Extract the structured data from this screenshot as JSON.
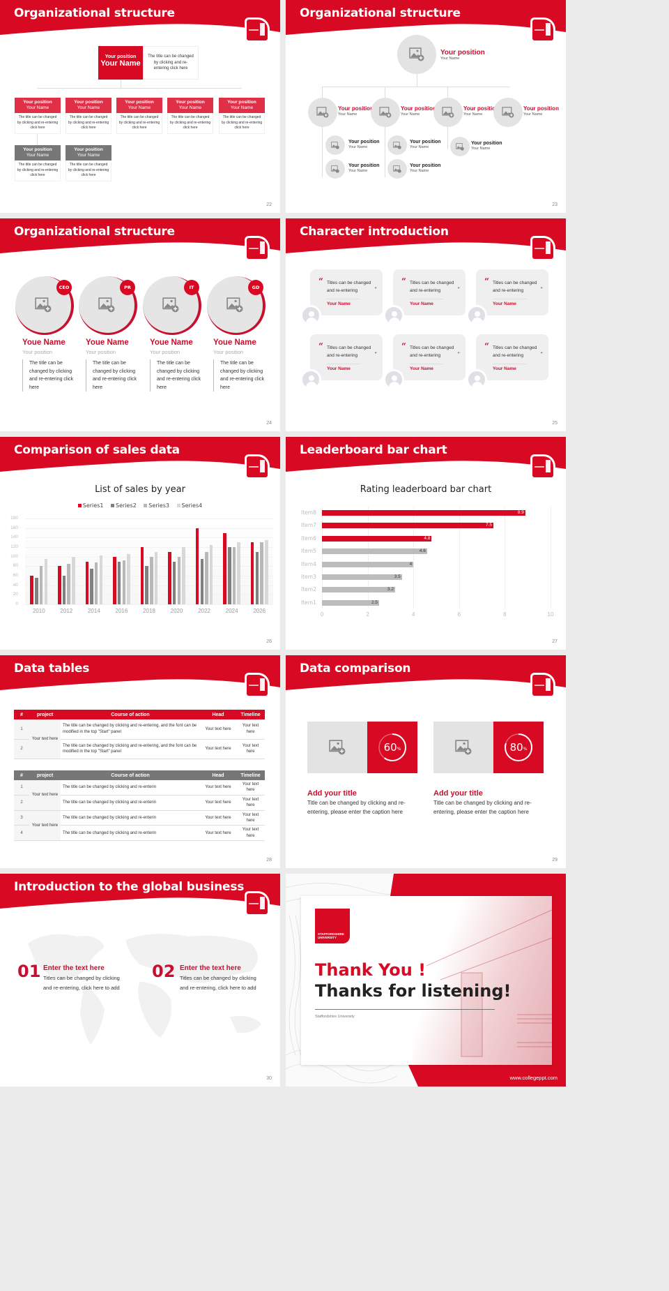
{
  "brand": {
    "red": "#d80a23",
    "gray": "#777777",
    "light_gray": "#e3e3e3"
  },
  "slides": {
    "s22": {
      "title": "Organizational structure",
      "page": "22",
      "top": {
        "position": "Your position",
        "name": "Your Name",
        "desc": "The title can be changed by clicking and re-entering click here"
      },
      "cards": [
        {
          "position": "Your position",
          "name": "Your Name",
          "desc": "The title can be changed by clicking and re-entering click here"
        },
        {
          "position": "Your position",
          "name": "Your Name",
          "desc": "The title can be changed by clicking and re-entering click here"
        },
        {
          "position": "Your position",
          "name": "Your Name",
          "desc": "The title can be changed by clicking and re-entering click here"
        },
        {
          "position": "Your position",
          "name": "Your Name",
          "desc": "The title can be changed by clicking and re-entering click here"
        },
        {
          "position": "Your position",
          "name": "Your Name",
          "desc": "The title can be changed by clicking and re-entering click here"
        },
        {
          "position": "Your position",
          "name": "Your Name",
          "desc": "The title can be changed by clicking and re-entering click here"
        },
        {
          "position": "Your position",
          "name": "Your Name",
          "desc": "The title can be changed by clicking and re-entering click here"
        }
      ]
    },
    "s23": {
      "title": "Organizational structure",
      "page": "23",
      "top": {
        "position": "Your position",
        "name": "Your Name"
      },
      "level2": [
        {
          "position": "Your position",
          "name": "Your Name"
        },
        {
          "position": "Your position",
          "name": "Your Name"
        },
        {
          "position": "Your position",
          "name": "Your Name"
        },
        {
          "position": "Your position",
          "name": "Your Name"
        }
      ],
      "level3": [
        {
          "position": "Your position",
          "name": "Your Name"
        },
        {
          "position": "Your position",
          "name": "Your Name"
        },
        {
          "position": "Your position",
          "name": "Your Name"
        },
        {
          "position": "Your position",
          "name": "Your Name"
        },
        {
          "position": "Your position",
          "name": "Your Name"
        }
      ]
    },
    "s24": {
      "title": "Organizational structure",
      "page": "24",
      "people": [
        {
          "badge": "CEO",
          "name": "Youe Name",
          "position": "Your position",
          "desc": "The title can be changed by clicking and re-entering click here"
        },
        {
          "badge": "PR",
          "name": "Youe Name",
          "position": "Your position",
          "desc": "The title can be changed by clicking and re-entering click here"
        },
        {
          "badge": "IT",
          "name": "Youe Name",
          "position": "Your position",
          "desc": "The title can be changed by clicking and re-entering click here"
        },
        {
          "badge": "GD",
          "name": "Youe Name",
          "position": "Your position",
          "desc": "The title can be changed by clicking and re-entering click here"
        }
      ]
    },
    "s25": {
      "title": "Character introduction",
      "page": "25",
      "quote_open": "“",
      "quote_close": "”",
      "cards": [
        {
          "text": "Titles can be changed and re-entering",
          "name": "Your Name"
        },
        {
          "text": "Titles can be changed and re-entering",
          "name": "Your Name"
        },
        {
          "text": "Titles can be changed and re-entering",
          "name": "Your Name"
        },
        {
          "text": "Titles can be changed and re-entering",
          "name": "Your Name"
        },
        {
          "text": "Titles can be changed and re-entering",
          "name": "Your Name"
        },
        {
          "text": "Titles can be changed and re-entering",
          "name": "Your Name"
        }
      ]
    },
    "s26": {
      "title": "Comparison of sales data",
      "page": "26"
    },
    "s27": {
      "title": "Leaderboard bar chart",
      "page": "27"
    },
    "s28": {
      "title": "Data tables",
      "page": "28",
      "headers": [
        "#",
        "project",
        "Course of action",
        "Head",
        "Timeline"
      ],
      "table1": {
        "project": "Your text here",
        "rows": [
          {
            "num": "1",
            "desc": "The title can be changed by clicking and re-entering, and the font can be modified in the top \"Start\" panel",
            "head": "Your text here",
            "timeline": "Your text here"
          },
          {
            "num": "2",
            "desc": "The title can be changed by clicking and re-entering, and the font can be modified in the top \"Start\" panel",
            "head": "Your text here",
            "timeline": "Your text here"
          }
        ]
      },
      "table2": {
        "projects": [
          "Your text here",
          "Your text here"
        ],
        "rows": [
          {
            "num": "1",
            "desc": "The title can be changed by clicking and re-enterin",
            "head": "Your text here",
            "timeline": "Your text here"
          },
          {
            "num": "2",
            "desc": "The title can be changed by clicking and re-enterin",
            "head": "Your text here",
            "timeline": "Your text here"
          },
          {
            "num": "3",
            "desc": "The title can be changed by clicking and re-enterin",
            "head": "Your text here",
            "timeline": "Your text here"
          },
          {
            "num": "4",
            "desc": "The title can be changed by clicking and re-enterin",
            "head": "Your text here",
            "timeline": "Your text here"
          }
        ]
      }
    },
    "s29": {
      "title": "Data comparison",
      "page": "29",
      "items": [
        {
          "percent": "60",
          "unit": "%",
          "title": "Add your title",
          "desc": "Title can be changed by clicking and re-entering, please enter the caption here"
        },
        {
          "percent": "80",
          "unit": "%",
          "title": "Add your title",
          "desc": "Title can be changed by clicking and re-entering, please enter the caption here"
        }
      ]
    },
    "s30": {
      "title": "Introduction to the global business",
      "page": "30",
      "items": [
        {
          "num": "01",
          "title": "Enter the text here",
          "desc1": "Titles can be changed by clicking",
          "desc2": "and re-entering, click here to add"
        },
        {
          "num": "02",
          "title": "Enter the text here",
          "desc1": "Titles can be changed by clicking",
          "desc2": "and re-entering, click here to add"
        }
      ]
    },
    "s31": {
      "logo_text": "STAFFORDSHIRE UNIVERSITY",
      "line1": "Thank You !",
      "line2": "Thanks for listening!",
      "sub": "Staffordshire University",
      "url": "www.collegeppt.com"
    }
  },
  "chart_data": [
    {
      "type": "bar",
      "title": "List of sales by year",
      "categories": [
        "2010",
        "2012",
        "2014",
        "2016",
        "2018",
        "2020",
        "2022",
        "2024",
        "2026"
      ],
      "series": [
        {
          "name": "Series1",
          "color": "#d80a23",
          "values": [
            60,
            80,
            90,
            100,
            120,
            110,
            160,
            150,
            130
          ]
        },
        {
          "name": "Series2",
          "color": "#808080",
          "values": [
            55,
            60,
            75,
            90,
            80,
            90,
            95,
            120,
            110
          ]
        },
        {
          "name": "Series3",
          "color": "#b8b8b8",
          "values": [
            80,
            85,
            88,
            92,
            100,
            100,
            110,
            120,
            130
          ]
        },
        {
          "name": "Series4",
          "color": "#d8d8d8",
          "values": [
            95,
            100,
            102,
            105,
            110,
            120,
            125,
            130,
            135
          ]
        }
      ],
      "xlabel": "",
      "ylabel": "",
      "ylim": [
        0,
        180
      ],
      "yticks": [
        0,
        20,
        40,
        60,
        80,
        100,
        120,
        140,
        160,
        180
      ],
      "grid": true,
      "legend_position": "top"
    },
    {
      "type": "bar",
      "orientation": "horizontal",
      "title": "Rating leaderboard bar chart",
      "categories": [
        "Item8",
        "Item7",
        "Item6",
        "Item5",
        "Item4",
        "Item3",
        "Item2",
        "Item1"
      ],
      "values": [
        8.9,
        7.5,
        4.8,
        4.6,
        4,
        3.5,
        3.2,
        2.5
      ],
      "value_labels": [
        "8.9",
        "7.5",
        "4.8",
        "4.6",
        "4",
        "3.5",
        "3.2",
        "2.5"
      ],
      "colors": [
        "#d80a23",
        "#d80a23",
        "#d80a23",
        "#bcbcbc",
        "#bcbcbc",
        "#bcbcbc",
        "#bcbcbc",
        "#bcbcbc"
      ],
      "xlim": [
        0,
        10
      ],
      "xticks": [
        "0",
        "2",
        "4",
        "6",
        "8",
        "10"
      ],
      "grid": true
    }
  ]
}
